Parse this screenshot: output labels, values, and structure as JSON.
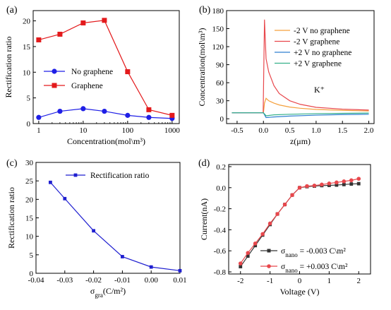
{
  "chart_data": [
    {
      "panel": "(a)",
      "type": "line",
      "xscale": "log",
      "xlabel": "Concentration(mol\\m³)",
      "ylabel": "Rectification ratio",
      "xticks": [
        1,
        10,
        100,
        1000
      ],
      "xtick_labels": [
        "1",
        "10",
        "100",
        "1000"
      ],
      "ylim": [
        0,
        22
      ],
      "yticks": [
        0,
        5,
        10,
        15,
        20
      ],
      "legend_position": "center-left",
      "series": [
        {
          "name": "No graphene",
          "color": "#1f1fe6",
          "marker": "circle",
          "x": [
            1,
            3,
            10,
            30,
            100,
            300,
            1000
          ],
          "values": [
            1.2,
            2.4,
            2.9,
            2.4,
            1.6,
            1.2,
            1.0
          ]
        },
        {
          "name": "Graphene",
          "color": "#e31a1c",
          "marker": "square",
          "x": [
            1,
            3,
            10,
            30,
            100,
            300,
            1000
          ],
          "values": [
            16.3,
            17.4,
            19.6,
            20.1,
            10.1,
            2.7,
            1.6
          ]
        }
      ]
    },
    {
      "panel": "(b)",
      "type": "line",
      "xlabel": "z(μm)",
      "ylabel": "Concentration(mol\\m³)",
      "xlim": [
        -0.7,
        2.1
      ],
      "xticks": [
        -0.5,
        0.0,
        0.5,
        1.0,
        1.5,
        2.0
      ],
      "xtick_labels": [
        "-0.5",
        "0.0",
        "0.5",
        "1.0",
        "1.5",
        "2.0"
      ],
      "ylim": [
        -8,
        180
      ],
      "yticks": [
        0,
        30,
        60,
        90,
        120,
        150,
        180
      ],
      "annotation": "K⁺",
      "legend_position": "top-right",
      "series": [
        {
          "name": "-2 V no graphene",
          "color": "#f5a03c",
          "x": [
            -0.6,
            0,
            0.02,
            0.05,
            0.1,
            0.2,
            0.3,
            0.5,
            0.7,
            1.0,
            1.5,
            2.0
          ],
          "values": [
            10,
            10,
            26,
            34,
            30,
            26,
            23,
            19.5,
            17.5,
            15.5,
            14,
            13
          ]
        },
        {
          "name": "-2 V graphene",
          "color": "#e8474c",
          "x": [
            -0.6,
            -0.005,
            0.02,
            0.05,
            0.1,
            0.2,
            0.3,
            0.5,
            0.7,
            1.0,
            1.5,
            2.0
          ],
          "values": [
            10,
            10,
            165,
            100,
            78,
            55,
            42,
            30,
            24,
            19,
            16,
            14.5
          ]
        },
        {
          "name": "+2 V no graphene",
          "color": "#2e7fd0",
          "x": [
            -0.6,
            0,
            0.05,
            0.2,
            0.5,
            1.0,
            1.5,
            2.0
          ],
          "values": [
            10,
            10,
            2,
            3,
            4.5,
            6,
            7,
            7.5
          ]
        },
        {
          "name": "+2 V graphene",
          "color": "#35b08a",
          "x": [
            -0.6,
            0,
            0.05,
            0.2,
            0.5,
            1.0,
            1.5,
            2.0
          ],
          "values": [
            10,
            10,
            5,
            6.5,
            7.5,
            8.5,
            9,
            9.5
          ]
        }
      ]
    },
    {
      "panel": "(c)",
      "type": "line",
      "xlabel": "σgra(C/m²)",
      "ylabel": "Rectification ratio",
      "xlim": [
        -0.04,
        0.01
      ],
      "xticks": [
        -0.04,
        -0.03,
        -0.02,
        -0.01,
        0.0,
        0.01
      ],
      "xtick_labels": [
        "-0.04",
        "-0.03",
        "-0.02",
        "-0.01",
        "0.00",
        "0.01"
      ],
      "ylim": [
        0,
        30
      ],
      "yticks": [
        0,
        5,
        10,
        15,
        20,
        25,
        30
      ],
      "legend_position": "top-right",
      "series": [
        {
          "name": "Rectification ratio",
          "color": "#1f1fd0",
          "marker": "square",
          "x": [
            -0.035,
            -0.03,
            -0.02,
            -0.01,
            0.0,
            0.01
          ],
          "values": [
            24.6,
            20.2,
            11.5,
            4.5,
            1.7,
            0.7
          ]
        }
      ]
    },
    {
      "panel": "(d)",
      "type": "line",
      "xlabel": "Voltage (V)",
      "ylabel": "Current(nA)",
      "xlim": [
        -2.4,
        2.4
      ],
      "xticks": [
        -2,
        -1,
        0,
        1,
        2
      ],
      "xtick_labels": [
        "-2",
        "-1",
        "0",
        "1",
        "2"
      ],
      "ylim": [
        -0.82,
        0.22
      ],
      "yticks": [
        -0.8,
        -0.6,
        -0.4,
        -0.2,
        0.0,
        0.2
      ],
      "ytick_labels": [
        "-0.8",
        "-0.6",
        "-0.4",
        "-0.2",
        "0.0",
        "0.2"
      ],
      "legend_position": "bottom-right",
      "series": [
        {
          "name_main": "σ",
          "name_sub": "nano",
          "name_rest": " = -0.003 C\\m²",
          "color": "#333333",
          "marker": "square",
          "x": [
            -2,
            -1.75,
            -1.5,
            -1.25,
            -1,
            -0.75,
            -0.5,
            -0.25,
            0,
            0.25,
            0.5,
            0.75,
            1,
            1.25,
            1.5,
            1.75,
            2
          ],
          "values": [
            -0.75,
            -0.65,
            -0.55,
            -0.45,
            -0.35,
            -0.25,
            -0.16,
            -0.07,
            0.0,
            0.01,
            0.015,
            0.02,
            0.022,
            0.025,
            0.03,
            0.035,
            0.038
          ]
        },
        {
          "name_main": "σ",
          "name_sub": "nano",
          "name_rest": " = +0.003 C\\m²",
          "color": "#e8474c",
          "marker": "circle",
          "x": [
            -2,
            -1.75,
            -1.5,
            -1.25,
            -1,
            -0.75,
            -0.5,
            -0.25,
            0,
            0.25,
            0.5,
            0.75,
            1,
            1.25,
            1.5,
            1.75,
            2
          ],
          "values": [
            -0.72,
            -0.62,
            -0.53,
            -0.44,
            -0.34,
            -0.25,
            -0.16,
            -0.07,
            0.0,
            0.015,
            0.02,
            0.03,
            0.04,
            0.05,
            0.06,
            0.07,
            0.085
          ]
        }
      ]
    }
  ]
}
